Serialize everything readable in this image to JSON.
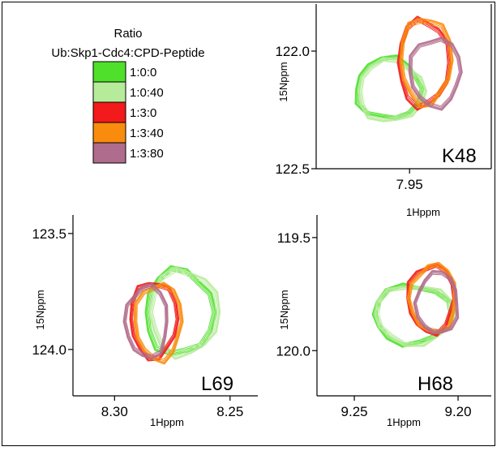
{
  "legend": {
    "title": "Ratio",
    "subtitle": "Ub:Skp1-Cdc4:CPD-Peptide",
    "items": [
      {
        "label": "1:0:0",
        "color": "#4ee02a"
      },
      {
        "label": "1:0:40",
        "color": "#b6eb9a"
      },
      {
        "label": "1:3:0",
        "color": "#f21a1a"
      },
      {
        "label": "1:3:40",
        "color": "#f98c0c"
      },
      {
        "label": "1:3:80",
        "color": "#b06c8c"
      }
    ]
  },
  "chart_data": [
    {
      "type": "contour",
      "panel": "K48",
      "xlabel": "1Hppm",
      "ylabel": "15Nppm",
      "x_ticks": [
        {
          "value": 7.95,
          "label": "7.95"
        }
      ],
      "y_ticks": [
        {
          "value": 122.0,
          "label": "122.0"
        },
        {
          "value": 122.5,
          "label": "122.5"
        }
      ],
      "xlim": [
        7.99,
        7.915
      ],
      "ylim": [
        121.8,
        122.5
      ],
      "series": [
        {
          "ratio": "1:0:0",
          "center_x": 7.959,
          "center_y": 122.16,
          "rx": 0.0145,
          "ry": 0.135
        },
        {
          "ratio": "1:0:40",
          "center_x": 7.958,
          "center_y": 122.17,
          "rx": 0.0145,
          "ry": 0.135
        },
        {
          "ratio": "1:3:0",
          "center_x": 7.944,
          "center_y": 122.05,
          "rx": 0.0113,
          "ry": 0.19
        },
        {
          "ratio": "1:3:40",
          "center_x": 7.943,
          "center_y": 122.04,
          "rx": 0.0113,
          "ry": 0.19
        },
        {
          "ratio": "1:3:80",
          "center_x": 7.939,
          "center_y": 122.09,
          "rx": 0.0113,
          "ry": 0.15
        }
      ]
    },
    {
      "type": "contour",
      "panel": "L69",
      "xlabel": "1Hppm",
      "ylabel": "15Nppm",
      "x_ticks": [
        {
          "value": 8.3,
          "label": "8.30"
        },
        {
          "value": 8.25,
          "label": "8.25"
        }
      ],
      "y_ticks": [
        {
          "value": 123.5,
          "label": "123.5"
        },
        {
          "value": 124.0,
          "label": "124.0"
        }
      ],
      "xlim": [
        8.318,
        8.238
      ],
      "ylim": [
        123.42,
        124.2
      ],
      "series": [
        {
          "ratio": "1:0:0",
          "center_x": 8.272,
          "center_y": 123.84,
          "rx": 0.0153,
          "ry": 0.19
        },
        {
          "ratio": "1:0:40",
          "center_x": 8.27,
          "center_y": 123.84,
          "rx": 0.0153,
          "ry": 0.19
        },
        {
          "ratio": "1:3:0",
          "center_x": 8.283,
          "center_y": 123.87,
          "rx": 0.0105,
          "ry": 0.17
        },
        {
          "ratio": "1:3:40",
          "center_x": 8.281,
          "center_y": 123.88,
          "rx": 0.0105,
          "ry": 0.17
        },
        {
          "ratio": "1:3:80",
          "center_x": 8.286,
          "center_y": 123.88,
          "rx": 0.0095,
          "ry": 0.16
        }
      ]
    },
    {
      "type": "contour",
      "panel": "H68",
      "xlabel": "1Hppm",
      "ylabel": "15Nppm",
      "x_ticks": [
        {
          "value": 9.25,
          "label": "9.25"
        },
        {
          "value": 9.2,
          "label": "9.20"
        }
      ],
      "y_ticks": [
        {
          "value": 119.5,
          "label": "119.5"
        },
        {
          "value": 120.0,
          "label": "120.0"
        }
      ],
      "xlim": [
        9.268,
        9.184
      ],
      "ylim": [
        119.4,
        120.2
      ],
      "series": [
        {
          "ratio": "1:0:0",
          "center_x": 9.222,
          "center_y": 119.84,
          "rx": 0.0195,
          "ry": 0.135
        },
        {
          "ratio": "1:0:40",
          "center_x": 9.221,
          "center_y": 119.84,
          "rx": 0.0195,
          "ry": 0.135
        },
        {
          "ratio": "1:3:0",
          "center_x": 9.213,
          "center_y": 119.77,
          "rx": 0.0116,
          "ry": 0.155
        },
        {
          "ratio": "1:3:40",
          "center_x": 9.212,
          "center_y": 119.77,
          "rx": 0.0116,
          "ry": 0.155
        },
        {
          "ratio": "1:3:80",
          "center_x": 9.21,
          "center_y": 119.79,
          "rx": 0.0105,
          "ry": 0.14
        }
      ]
    }
  ]
}
